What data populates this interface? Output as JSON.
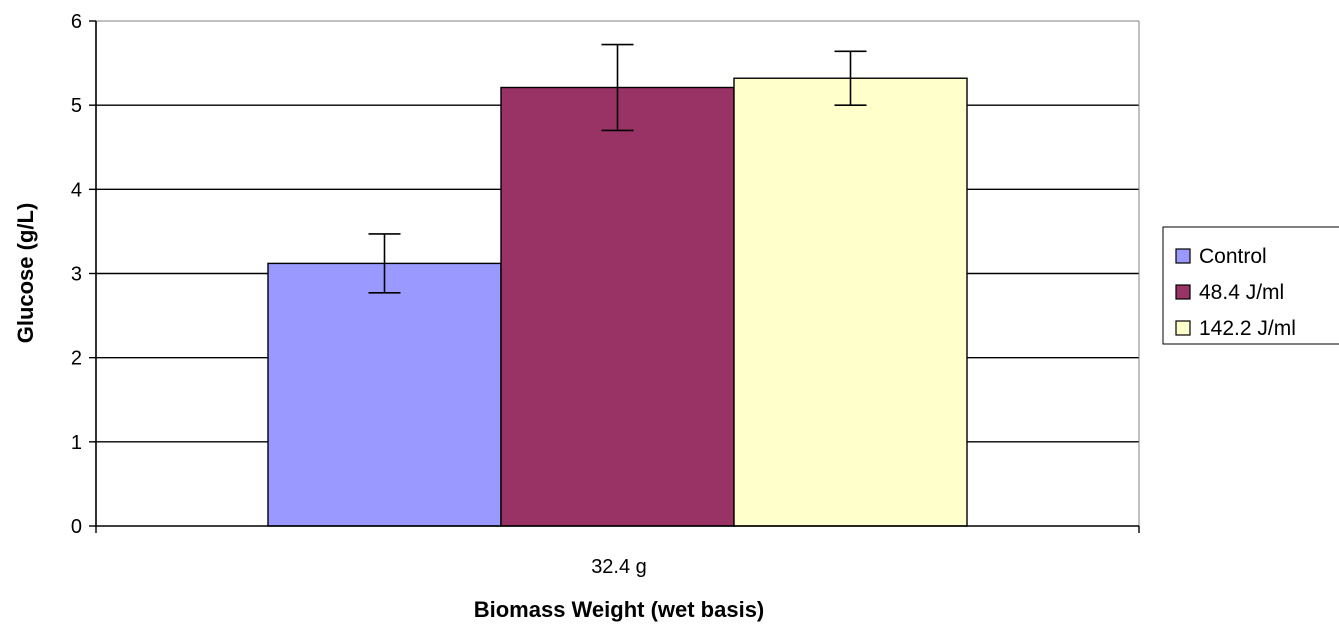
{
  "chart_data": {
    "type": "bar",
    "categories": [
      "32.4 g"
    ],
    "series": [
      {
        "name": "Control",
        "values": [
          3.12
        ],
        "error": [
          0.35
        ],
        "color": "#9999ff"
      },
      {
        "name": "48.4 J/ml",
        "values": [
          5.21
        ],
        "error": [
          0.51
        ],
        "color": "#993366"
      },
      {
        "name": "142.2 J/ml",
        "values": [
          5.32
        ],
        "error": [
          0.32
        ],
        "color": "#ffffcc"
      }
    ],
    "xlabel": "Biomass Weight (wet basis)",
    "ylabel": "Glucose (g/L)",
    "ylim": [
      0,
      6
    ],
    "yticks": [
      "0",
      "1",
      "2",
      "3",
      "4",
      "5",
      "6"
    ],
    "grid": true,
    "legend_position": "right"
  }
}
